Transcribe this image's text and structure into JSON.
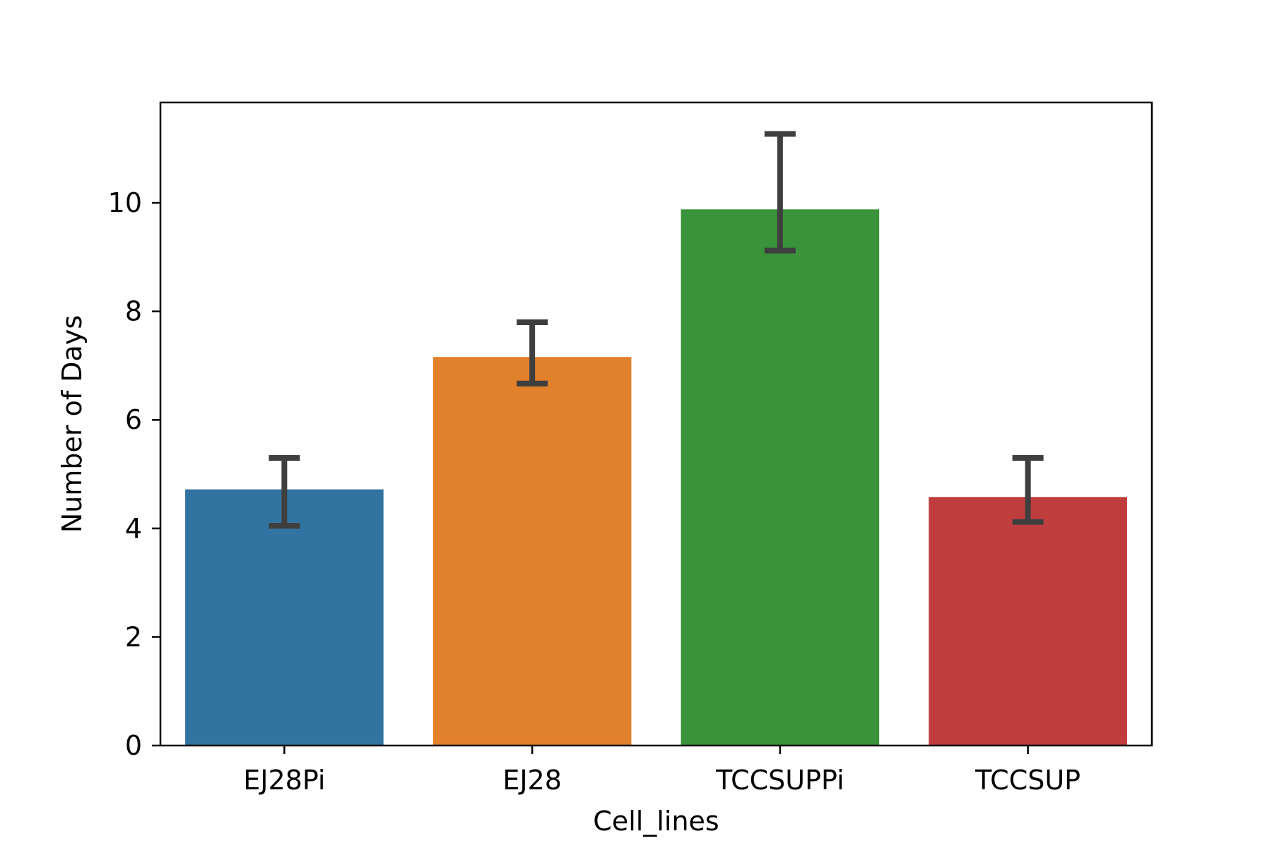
{
  "chart_data": {
    "type": "bar",
    "title": "",
    "xlabel": "Cell_lines",
    "ylabel": "Number of Days",
    "categories": [
      "EJ28Pi",
      "EJ28",
      "TCCSUPPi",
      "TCCSUP"
    ],
    "values": [
      4.72,
      7.16,
      9.88,
      4.58
    ],
    "error_low": [
      4.05,
      6.67,
      9.12,
      4.12
    ],
    "error_high": [
      5.3,
      7.8,
      11.27,
      5.3
    ],
    "colors": [
      "#3274a1",
      "#e1812c",
      "#3a923a",
      "#c03d3e"
    ],
    "error_color": "#3f3f3f",
    "ylim": [
      0,
      11.85
    ],
    "yticks": [
      "0",
      "2",
      "4",
      "6",
      "8",
      "10"
    ],
    "grid": false,
    "legend": "none"
  }
}
